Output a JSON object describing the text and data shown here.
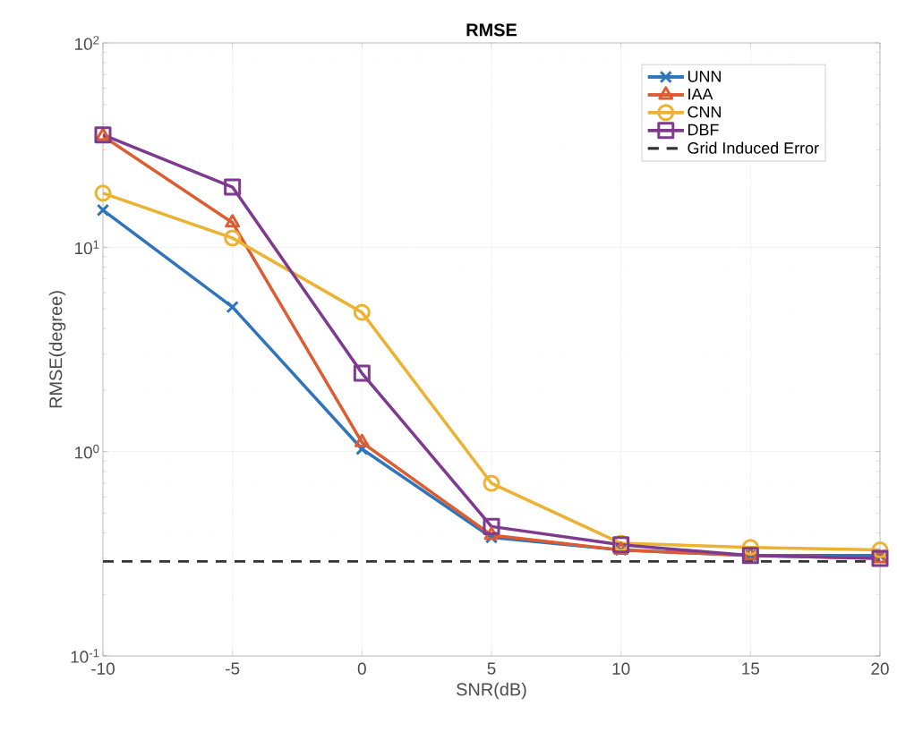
{
  "chart_data": {
    "type": "line",
    "title": "RMSE",
    "xlabel": "SNR(dB)",
    "ylabel": "RMSE(degree)",
    "x": [
      -10,
      -5,
      0,
      5,
      10,
      15,
      20
    ],
    "series": [
      {
        "name": "UNN",
        "color": "#2e75bb",
        "marker": "cross",
        "values": [
          15.2,
          5.1,
          1.03,
          0.38,
          0.33,
          0.31,
          0.31
        ]
      },
      {
        "name": "IAA",
        "color": "#dd5c31",
        "marker": "triangle",
        "values": [
          35,
          13.2,
          1.11,
          0.39,
          0.33,
          0.31,
          0.3
        ]
      },
      {
        "name": "CNN",
        "color": "#ecb232",
        "marker": "circle",
        "values": [
          18.4,
          11.1,
          4.8,
          0.7,
          0.356,
          0.34,
          0.33
        ]
      },
      {
        "name": "DBF",
        "color": "#7e3a8e",
        "marker": "square",
        "values": [
          35.5,
          19.7,
          2.42,
          0.43,
          0.35,
          0.31,
          0.3
        ]
      }
    ],
    "ref_lines": [
      {
        "axis": "y",
        "value": 0.29,
        "label": "Grid Induced Error",
        "color": "#333333",
        "line_style": "dashed"
      }
    ],
    "log": "y",
    "grid": true,
    "legend": "top right",
    "line_style": "solid",
    "xlim": [
      -10,
      20
    ],
    "xticks": [
      -10,
      -5,
      0,
      5,
      10,
      15,
      20
    ],
    "ylim": [
      0.1,
      100
    ],
    "yticks": [
      {
        "value": 0.1,
        "label": "10$^{-1}$"
      },
      {
        "value": 1,
        "label": "10$^{0}$"
      },
      {
        "value": 10,
        "label": "10$^{1}$"
      },
      {
        "value": 100,
        "label": "10$^{2}$"
      }
    ]
  }
}
